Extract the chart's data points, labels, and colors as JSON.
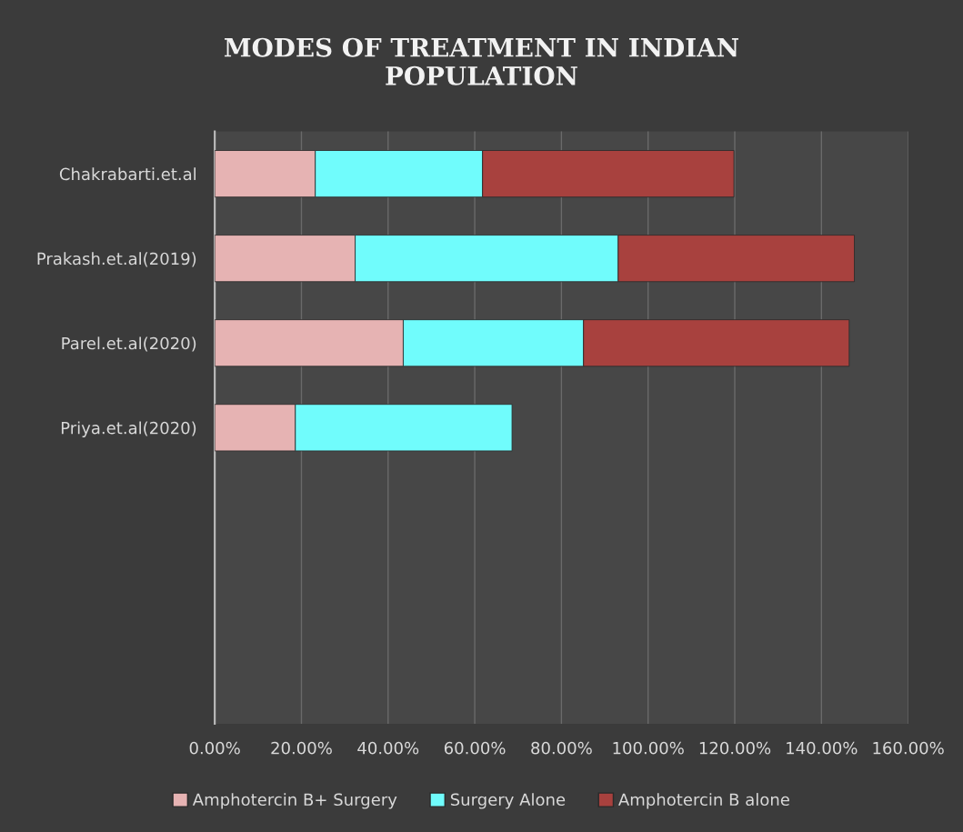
{
  "chart_data": {
    "type": "bar",
    "orientation": "horizontal",
    "stacked": true,
    "title": "MODES OF TREATMENT IN INDIAN POPULATION",
    "categories": [
      "Chakrabarti.et.al",
      "Prakash.et.al(2019)",
      "Parel.et.al(2020)",
      "Priya.et.al(2020)",
      null,
      null,
      null
    ],
    "series": [
      {
        "name": "Amphotercin B+ Surgery",
        "color": "#e6b3b3",
        "values": [
          23.2,
          32.4,
          43.5,
          18.6,
          null,
          null,
          null
        ]
      },
      {
        "name": "Surgery Alone",
        "color": "#70fcfc",
        "values": [
          38.6,
          60.7,
          41.6,
          50.0,
          null,
          null,
          null
        ]
      },
      {
        "name": "Amphotercin B alone",
        "color": "#a8413e",
        "values": [
          58.0,
          54.5,
          61.3,
          null,
          null,
          null,
          null
        ]
      }
    ],
    "xlim": [
      0,
      160
    ],
    "xticks": [
      {
        "value": 0,
        "label": "0.00%"
      },
      {
        "value": 20,
        "label": "20.00%"
      },
      {
        "value": 40,
        "label": "40.00%"
      },
      {
        "value": 60,
        "label": "60.00%"
      },
      {
        "value": 80,
        "label": "80.00%"
      },
      {
        "value": 100,
        "label": "100.00%"
      },
      {
        "value": 120,
        "label": "120.00%"
      },
      {
        "value": 140,
        "label": "140.00%"
      },
      {
        "value": 160,
        "label": "160.00%"
      }
    ],
    "grid": "x",
    "legend": "bottom"
  }
}
